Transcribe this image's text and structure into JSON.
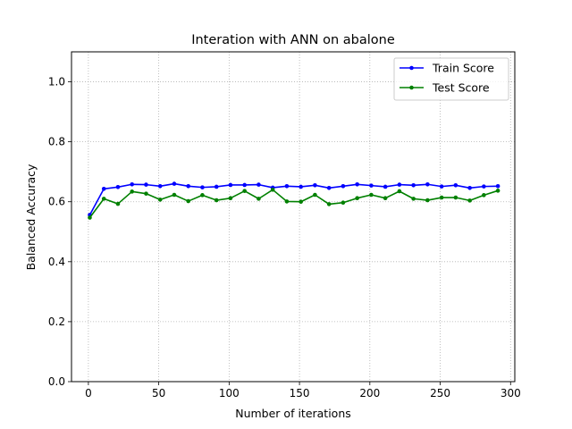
{
  "chart_data": {
    "type": "line",
    "title": "Interation with ANN on abalone",
    "xlabel": "Number of iterations",
    "ylabel": "Balanced Accuracy",
    "xlim": [
      -12,
      303
    ],
    "ylim": [
      0.0,
      1.1
    ],
    "xticks": [
      0,
      50,
      100,
      150,
      200,
      250,
      300
    ],
    "xtick_labels": [
      "0",
      "50",
      "100",
      "150",
      "200",
      "250",
      "300"
    ],
    "yticks": [
      0.0,
      0.2,
      0.4,
      0.6,
      0.8,
      1.0
    ],
    "ytick_labels": [
      "0.0",
      "0.2",
      "0.4",
      "0.6",
      "0.8",
      "1.0"
    ],
    "grid": true,
    "grid_style": "dotted",
    "legend_position": "top-right",
    "x": [
      1,
      11,
      21,
      31,
      41,
      51,
      61,
      71,
      81,
      91,
      101,
      111,
      121,
      131,
      141,
      151,
      161,
      171,
      181,
      191,
      201,
      211,
      221,
      231,
      241,
      251,
      261,
      271,
      281,
      291
    ],
    "series": [
      {
        "name": "Train Score",
        "color": "#0000ff",
        "values": [
          0.556,
          0.643,
          0.649,
          0.658,
          0.657,
          0.652,
          0.66,
          0.652,
          0.648,
          0.65,
          0.656,
          0.656,
          0.657,
          0.647,
          0.652,
          0.65,
          0.655,
          0.646,
          0.652,
          0.658,
          0.654,
          0.65,
          0.657,
          0.655,
          0.658,
          0.651,
          0.655,
          0.646,
          0.651,
          0.652
        ]
      },
      {
        "name": "Test Score",
        "color": "#008000",
        "values": [
          0.547,
          0.61,
          0.593,
          0.634,
          0.627,
          0.607,
          0.623,
          0.602,
          0.622,
          0.605,
          0.612,
          0.636,
          0.61,
          0.64,
          0.601,
          0.6,
          0.623,
          0.592,
          0.597,
          0.612,
          0.623,
          0.612,
          0.635,
          0.61,
          0.605,
          0.614,
          0.614,
          0.604,
          0.622,
          0.637
        ]
      }
    ]
  }
}
